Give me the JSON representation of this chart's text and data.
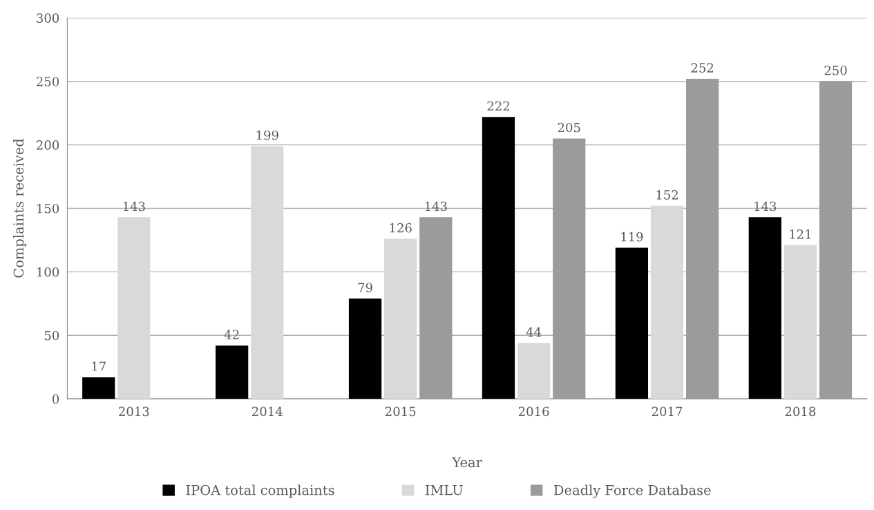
{
  "chart_data": {
    "type": "bar",
    "xlabel": "Year",
    "ylabel": "Complaints received",
    "categories": [
      "2013",
      "2014",
      "2015",
      "2016",
      "2017",
      "2018"
    ],
    "series": [
      {
        "name": "IPOA total complaints",
        "color": "#000000",
        "values": [
          17,
          42,
          79,
          222,
          119,
          143
        ]
      },
      {
        "name": "IMLU",
        "color": "#d9d9d9",
        "values": [
          143,
          199,
          126,
          44,
          152,
          121
        ]
      },
      {
        "name": "Deadly Force Database",
        "color": "#9b9b9a",
        "values": [
          null,
          null,
          143,
          205,
          252,
          250
        ]
      }
    ],
    "ylim": [
      0,
      300
    ],
    "yticks": [
      0,
      50,
      100,
      150,
      200,
      250,
      300
    ],
    "grid": "y",
    "legend": "bottom",
    "data_labels": true
  }
}
